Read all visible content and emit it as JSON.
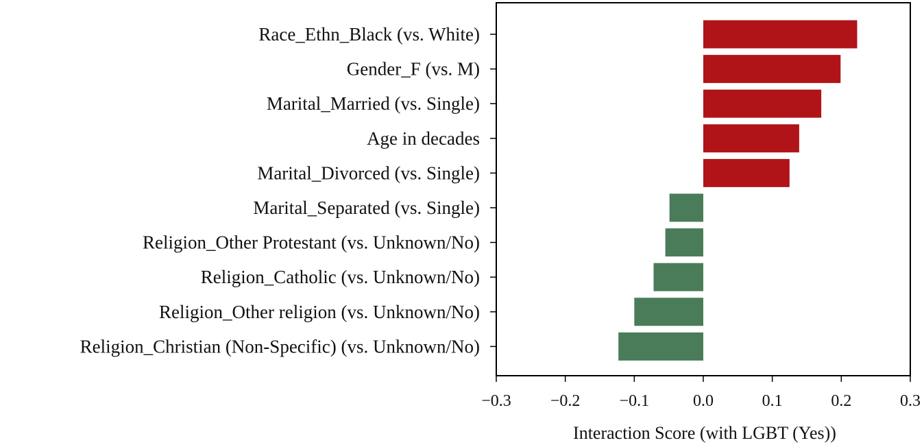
{
  "chart_data": {
    "type": "bar",
    "orientation": "horizontal",
    "xlabel": "Interaction Score (with LGBT (Yes))",
    "xlim": [
      -0.3,
      0.3
    ],
    "xticks": [
      -0.3,
      -0.2,
      -0.1,
      0.0,
      0.1,
      0.2,
      0.3
    ],
    "xtick_labels": [
      "−0.3",
      "−0.2",
      "−0.1",
      "0.0",
      "0.1",
      "0.2",
      "0.3"
    ],
    "categories": [
      "Race_Ethn_Black (vs. White)",
      "Gender_F (vs. M)",
      "Marital_Married (vs. Single)",
      "Age in decades",
      "Marital_Divorced (vs. Single)",
      "Marital_Separated (vs. Single)",
      "Religion_Other Protestant (vs. Unknown/No)",
      "Religion_Catholic (vs. Unknown/No)",
      "Religion_Other religion (vs. Unknown/No)",
      "Religion_Christian (Non-Specific) (vs. Unknown/No)"
    ],
    "values": [
      0.223,
      0.199,
      0.171,
      0.139,
      0.125,
      -0.049,
      -0.055,
      -0.072,
      -0.1,
      -0.123
    ],
    "grid": false,
    "colors": {
      "positive": "#b01419",
      "negative": "#4a7c59"
    }
  }
}
